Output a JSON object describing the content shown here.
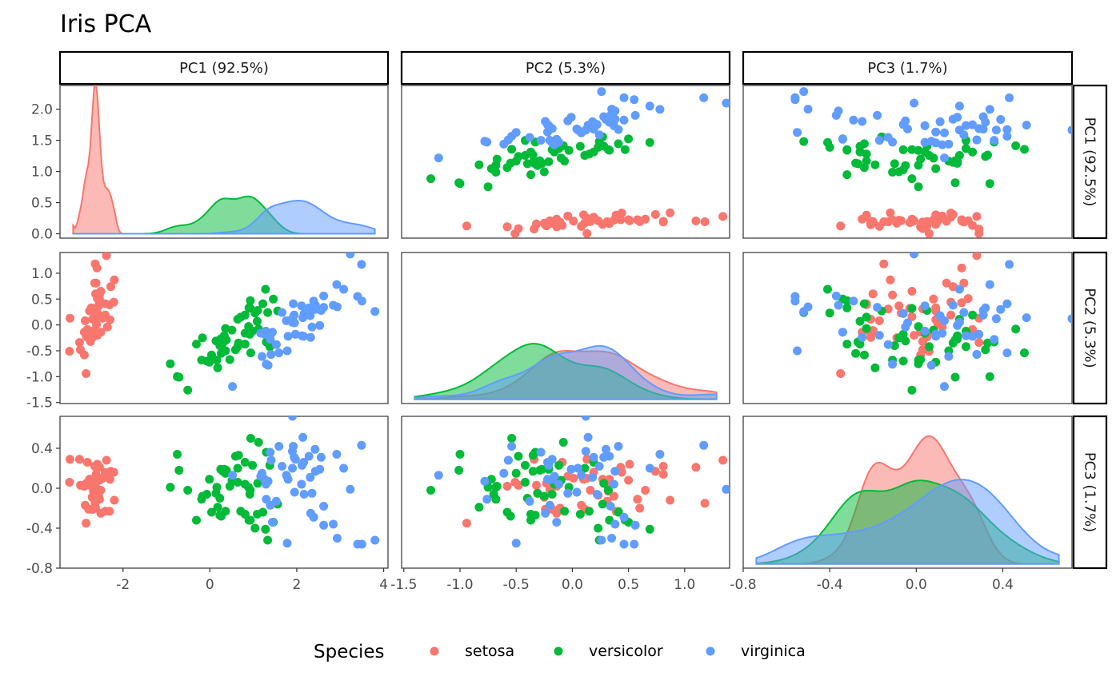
{
  "chart_data": {
    "type": "scatter-matrix",
    "title": "Iris PCA",
    "variables": [
      "PC1 (92.5%)",
      "PC2 (5.3%)",
      "PC3 (1.7%)"
    ],
    "axes": {
      "PC1": {
        "ticks": [
          -2,
          0,
          2,
          4
        ],
        "tick_labels": [
          "-2",
          "0",
          "2",
          "4"
        ],
        "range": [
          -3.45,
          4.1
        ]
      },
      "PC2": {
        "ticks": [
          -1.5,
          -1.0,
          -0.5,
          0.0,
          0.5,
          1.0
        ],
        "tick_labels": [
          "-1.5",
          "-1.0",
          "-0.5",
          "0.0",
          "0.5",
          "1.0"
        ],
        "range": [
          -1.52,
          1.4
        ]
      },
      "PC3": {
        "ticks": [
          -0.8,
          -0.4,
          0.0,
          0.4
        ],
        "tick_labels": [
          "-0.8",
          "-0.4",
          "0.0",
          "0.4"
        ],
        "range": [
          -0.8,
          0.72
        ]
      },
      "density": {
        "ticks": [
          0,
          0.5,
          1.0,
          1.5,
          2.0
        ],
        "tick_labels": [
          "0.0",
          "0.5",
          "1.0",
          "1.5",
          "2.0"
        ],
        "range": [
          -0.07,
          2.38
        ]
      }
    },
    "legend": {
      "title": "Species",
      "position": "bottom",
      "entries": [
        {
          "name": "setosa",
          "color": "#F8766D"
        },
        {
          "name": "versicolor",
          "color": "#00BA38"
        },
        {
          "name": "virginica",
          "color": "#619CFF"
        }
      ]
    },
    "series": [
      {
        "name": "setosa",
        "color": "#F8766D",
        "points": [
          [
            -2.68,
            0.32,
            -0.03
          ],
          [
            -2.71,
            -0.18,
            -0.21
          ],
          [
            -2.89,
            -0.14,
            0.02
          ],
          [
            -2.75,
            -0.32,
            0.03
          ],
          [
            -2.73,
            0.33,
            0.09
          ],
          [
            -2.28,
            0.74,
            0.17
          ],
          [
            -2.82,
            -0.09,
            0.26
          ],
          [
            -2.63,
            0.16,
            -0.02
          ],
          [
            -2.89,
            -0.58,
            0.02
          ],
          [
            -2.67,
            -0.11,
            -0.2
          ],
          [
            -2.51,
            0.65,
            -0.02
          ],
          [
            -2.61,
            0.01,
            0.1
          ],
          [
            -2.79,
            -0.24,
            -0.21
          ],
          [
            -3.23,
            -0.51,
            0.06
          ],
          [
            -2.64,
            1.18,
            -0.15
          ],
          [
            -2.38,
            1.34,
            0.28
          ],
          [
            -2.62,
            0.81,
            0.14
          ],
          [
            -2.65,
            0.31,
            0.03
          ],
          [
            -2.2,
            0.87,
            -0.12
          ],
          [
            -2.59,
            0.51,
            0.24
          ],
          [
            -2.31,
            0.39,
            -0.23
          ],
          [
            -2.54,
            0.43,
            0.21
          ],
          [
            -3.22,
            0.13,
            0.29
          ],
          [
            -2.3,
            0.1,
            0.09
          ],
          [
            -2.36,
            -0.04,
            0.12
          ],
          [
            -2.51,
            -0.14,
            -0.25
          ],
          [
            -2.47,
            0.13,
            0.1
          ],
          [
            -2.56,
            0.37,
            -0.08
          ],
          [
            -2.64,
            0.31,
            -0.13
          ],
          [
            -2.63,
            -0.19,
            0.05
          ],
          [
            -2.59,
            -0.2,
            -0.01
          ],
          [
            -2.41,
            0.41,
            -0.23
          ],
          [
            -2.65,
            0.81,
            0.22
          ],
          [
            -2.6,
            1.1,
            0.21
          ],
          [
            -2.67,
            -0.11,
            -0.2
          ],
          [
            -2.87,
            0.08,
            -0.17
          ],
          [
            -2.63,
            0.6,
            -0.2
          ],
          [
            -2.67,
            -0.11,
            -0.2
          ],
          [
            -2.98,
            -0.48,
            0.03
          ],
          [
            -2.59,
            0.23,
            -0.07
          ],
          [
            -2.77,
            0.27,
            0.09
          ],
          [
            -2.85,
            -0.94,
            -0.35
          ],
          [
            -3.0,
            -0.34,
            0.29
          ],
          [
            -2.41,
            0.19,
            0.16
          ],
          [
            -2.21,
            0.44,
            0.16
          ],
          [
            -2.71,
            -0.25,
            -0.09
          ],
          [
            -2.54,
            0.5,
            0.08
          ],
          [
            -2.84,
            -0.23,
            0.05
          ],
          [
            -2.54,
            0.58,
            -0.11
          ],
          [
            -2.7,
            0.11,
            -0.21
          ]
        ]
      },
      {
        "name": "versicolor",
        "color": "#00BA38",
        "points": [
          [
            1.28,
            0.69,
            -0.41
          ],
          [
            0.93,
            0.32,
            -0.02
          ],
          [
            1.46,
            0.5,
            -0.34
          ],
          [
            0.18,
            -0.83,
            -0.19
          ],
          [
            1.09,
            0.07,
            -0.26
          ],
          [
            0.64,
            -0.42,
            0.06
          ],
          [
            1.1,
            0.28,
            0.05
          ],
          [
            -0.75,
            -1.0,
            0.34
          ],
          [
            1.04,
            0.23,
            -0.4
          ],
          [
            -0.01,
            -0.72,
            0.09
          ],
          [
            -0.51,
            -1.26,
            -0.02
          ],
          [
            0.51,
            -0.1,
            0.08
          ],
          [
            0.26,
            -0.55,
            -0.28
          ],
          [
            0.98,
            -0.12,
            0.23
          ],
          [
            -0.17,
            -0.25,
            -0.08
          ],
          [
            0.93,
            0.47,
            -0.32
          ],
          [
            0.66,
            -0.35,
            0.33
          ],
          [
            0.23,
            -0.33,
            -0.27
          ],
          [
            0.94,
            -0.54,
            0.5
          ],
          [
            0.04,
            -0.58,
            -0.24
          ],
          [
            1.12,
            -0.08,
            0.46
          ],
          [
            0.36,
            -0.07,
            -0.23
          ],
          [
            1.3,
            -0.33,
            0.36
          ],
          [
            0.92,
            -0.18,
            -0.06
          ],
          [
            0.71,
            0.15,
            -0.23
          ],
          [
            0.9,
            0.33,
            -0.32
          ],
          [
            1.33,
            0.24,
            -0.52
          ],
          [
            1.56,
            0.27,
            -0.16
          ],
          [
            0.81,
            -0.16,
            0.04
          ],
          [
            -0.31,
            -0.37,
            -0.32
          ],
          [
            -0.07,
            -0.7,
            -0.06
          ],
          [
            -0.19,
            -0.68,
            -0.11
          ],
          [
            0.14,
            -0.31,
            -0.05
          ],
          [
            1.38,
            -0.42,
            0.23
          ],
          [
            0.59,
            -0.48,
            0.32
          ],
          [
            0.81,
            0.19,
            0.26
          ],
          [
            1.22,
            0.41,
            -0.24
          ],
          [
            0.81,
            -0.37,
            -0.26
          ],
          [
            0.25,
            -0.27,
            0.19
          ],
          [
            0.16,
            -0.68,
            0.01
          ],
          [
            0.46,
            -0.67,
            0.02
          ],
          [
            0.89,
            -0.03,
            0.01
          ],
          [
            0.23,
            -0.4,
            -0.1
          ],
          [
            -0.71,
            -1.01,
            0.18
          ],
          [
            0.36,
            -0.5,
            0.15
          ],
          [
            0.33,
            -0.21,
            0.19
          ],
          [
            0.38,
            -0.29,
            0.18
          ],
          [
            0.64,
            0.11,
            0.2
          ],
          [
            -0.91,
            -0.75,
            0.01
          ],
          [
            0.3,
            -0.35,
            0.17
          ]
        ]
      },
      {
        "name": "virginica",
        "color": "#619CFF",
        "points": [
          [
            2.53,
            -0.01,
            0.19
          ],
          [
            1.41,
            -0.57,
            0.28
          ],
          [
            2.62,
            0.34,
            -0.18
          ],
          [
            1.97,
            -0.18,
            0.29
          ],
          [
            2.35,
            -0.04,
            -0.05
          ],
          [
            3.4,
            0.55,
            -0.56
          ],
          [
            0.52,
            -1.19,
            0.13
          ],
          [
            2.93,
            0.35,
            -0.5
          ],
          [
            2.32,
            -0.24,
            -0.25
          ],
          [
            2.92,
            0.78,
            0.34
          ],
          [
            1.66,
            0.24,
            0.22
          ],
          [
            1.8,
            -0.22,
            0.09
          ],
          [
            2.17,
            0.22,
            -0.06
          ],
          [
            1.34,
            -0.78,
            0.07
          ],
          [
            1.59,
            -0.54,
            0.42
          ],
          [
            1.9,
            0.12,
            0.37
          ],
          [
            1.95,
            0.04,
            -0.04
          ],
          [
            3.49,
            1.17,
            0.43
          ],
          [
            3.8,
            0.26,
            -0.52
          ],
          [
            1.3,
            -0.76,
            -0.11
          ],
          [
            2.43,
            0.38,
            0.17
          ],
          [
            1.2,
            -0.61,
            0.15
          ],
          [
            3.5,
            0.46,
            -0.56
          ],
          [
            1.39,
            -0.2,
            -0.17
          ],
          [
            2.28,
            0.33,
            0.32
          ],
          [
            2.62,
            0.56,
            -0.37
          ],
          [
            1.26,
            -0.18,
            0.09
          ],
          [
            1.29,
            -0.12,
            0.04
          ],
          [
            2.12,
            -0.21,
            0.23
          ],
          [
            2.39,
            0.46,
            -0.29
          ],
          [
            2.84,
            0.38,
            -0.36
          ],
          [
            3.23,
            1.37,
            -0.01
          ],
          [
            2.16,
            -0.22,
            0.26
          ],
          [
            1.44,
            -0.14,
            -0.34
          ],
          [
            1.78,
            -0.5,
            -0.55
          ],
          [
            3.08,
            0.69,
            0.2
          ],
          [
            2.14,
            0.14,
            0.51
          ],
          [
            1.9,
            0.05,
            0.2
          ],
          [
            1.17,
            -0.16,
            0.12
          ],
          [
            2.11,
            0.37,
            0.04
          ],
          [
            2.31,
            0.18,
            0.11
          ],
          [
            1.92,
            0.41,
            0.42
          ],
          [
            1.41,
            -0.57,
            0.28
          ],
          [
            2.56,
            0.28,
            0.31
          ],
          [
            2.42,
            0.3,
            0.39
          ],
          [
            1.94,
            0.19,
            0.31
          ],
          [
            1.53,
            -0.38,
            -0.13
          ],
          [
            1.76,
            0.08,
            0.13
          ],
          [
            1.9,
            0.12,
            0.72
          ],
          [
            1.39,
            -0.28,
            0.36
          ]
        ]
      }
    ]
  }
}
